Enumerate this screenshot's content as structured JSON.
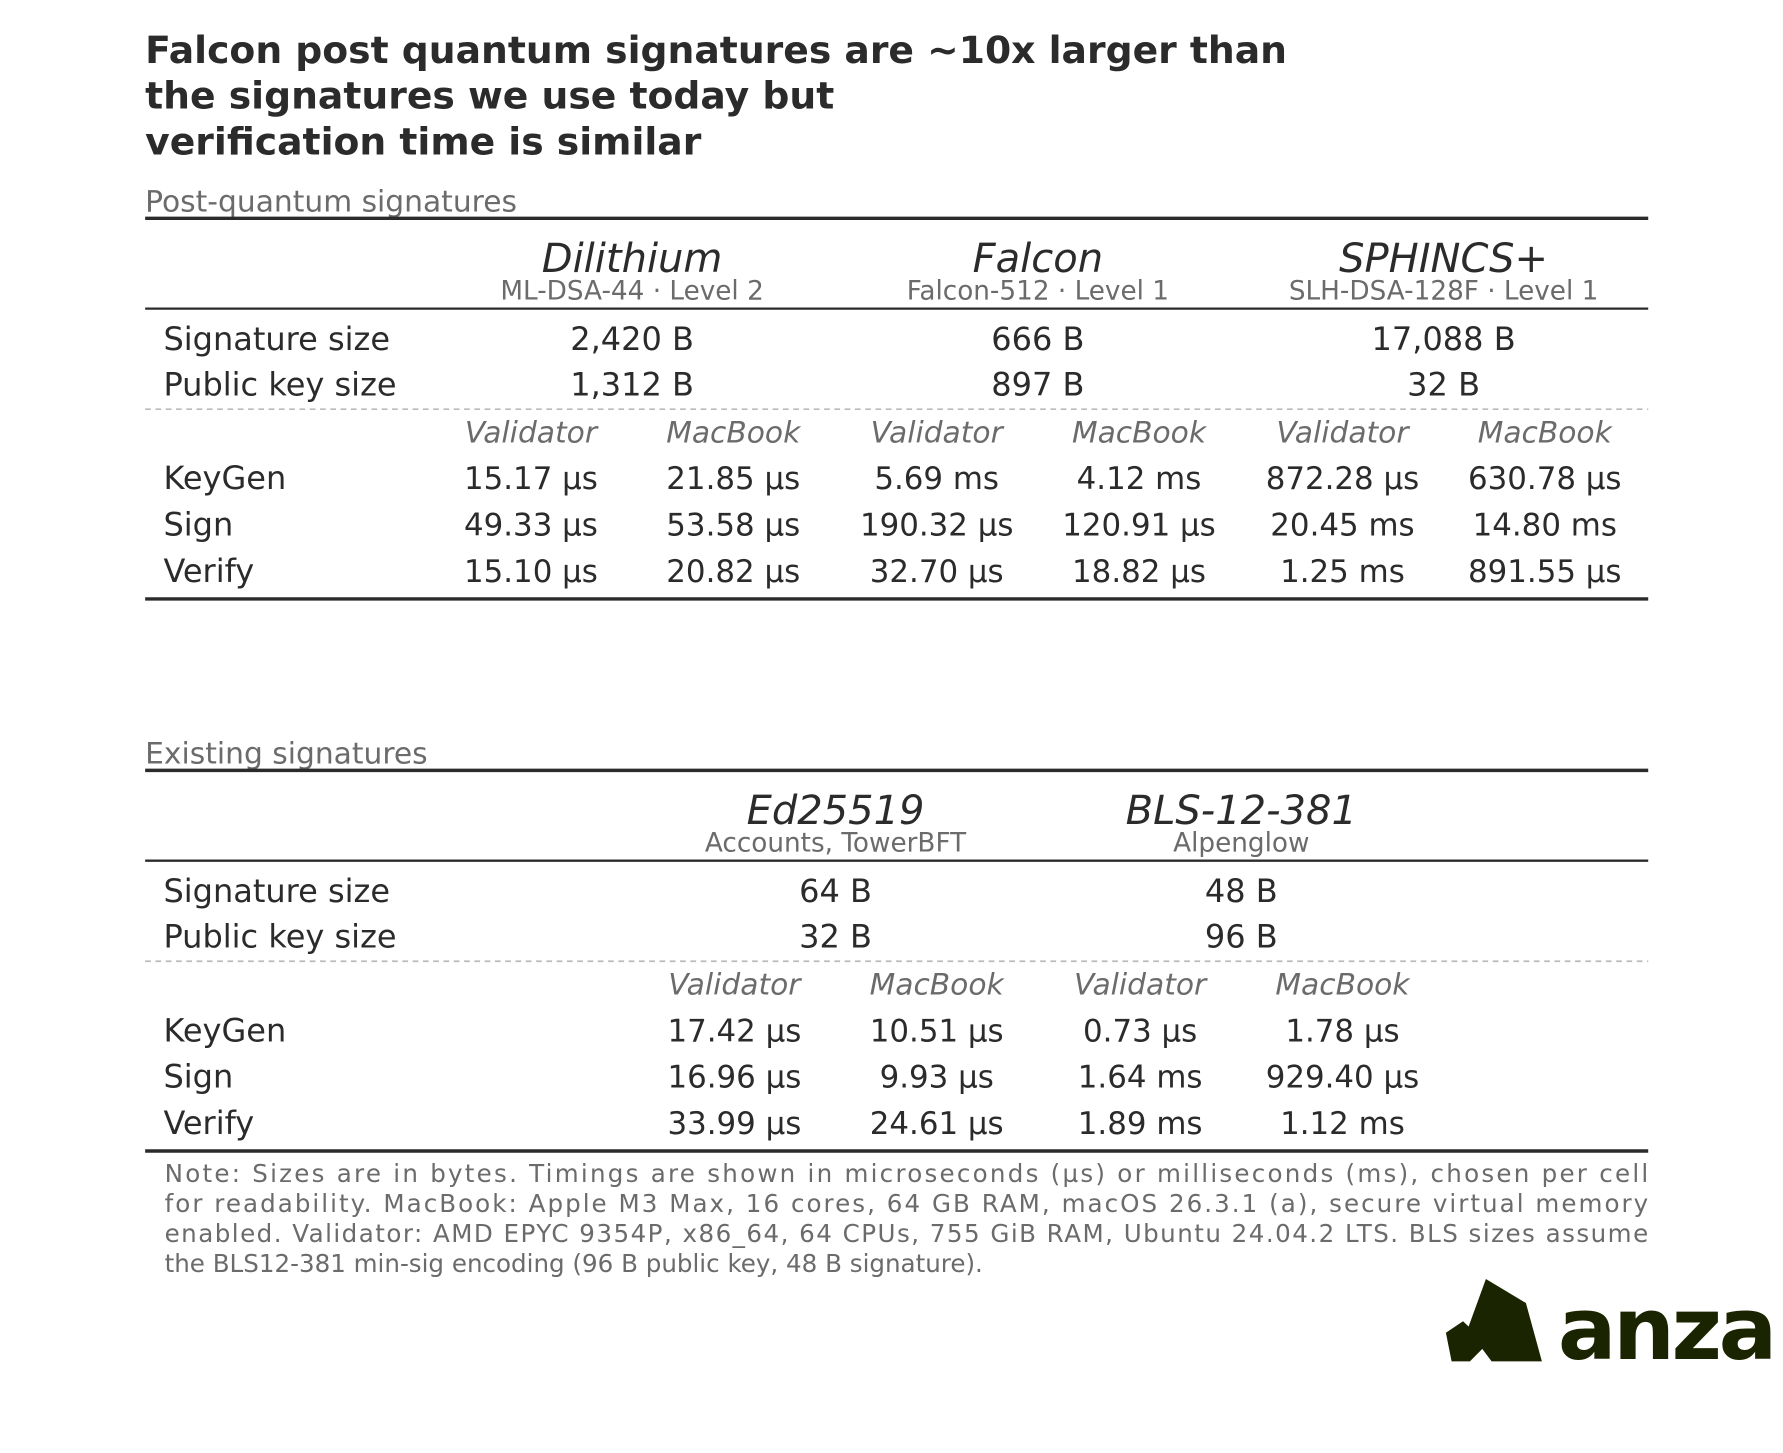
{
  "title_lines": [
    "Falcon post quantum signatures are ~10x larger than",
    "the signatures we use today but",
    "verification time is similar"
  ],
  "sections": [
    {
      "label": "Post-quantum signatures",
      "schemes": [
        {
          "name": "Dilithium",
          "detail": "ML-DSA-44 · Level 2"
        },
        {
          "name": "Falcon",
          "detail": "Falcon-512 · Level 1"
        },
        {
          "name": "SPHINCS+",
          "detail": "SLH-DSA-128F · Level 1"
        }
      ],
      "size_rows": [
        {
          "label": "Signature size",
          "cells": [
            "2,420 B",
            "666 B",
            "17,088 B"
          ]
        },
        {
          "label": "Public key size",
          "cells": [
            "1,312 B",
            "897 B",
            "32 B"
          ]
        }
      ],
      "machines": [
        "Validator",
        "MacBook",
        "Validator",
        "MacBook",
        "Validator",
        "MacBook"
      ],
      "timing_rows": [
        {
          "label": "KeyGen",
          "cells": [
            "15.17 µs",
            "21.85 µs",
            "5.69 ms",
            "4.12 ms",
            "872.28 µs",
            "630.78 µs"
          ]
        },
        {
          "label": "Sign",
          "cells": [
            "49.33 µs",
            "53.58 µs",
            "190.32 µs",
            "120.91 µs",
            "20.45 ms",
            "14.80 ms"
          ]
        },
        {
          "label": "Verify",
          "cells": [
            "15.10 µs",
            "20.82 µs",
            "32.70 µs",
            "18.82 µs",
            "1.25 ms",
            "891.55 µs"
          ]
        }
      ]
    },
    {
      "label": "Existing signatures",
      "schemes": [
        {
          "name": "Ed25519",
          "detail": "Accounts, TowerBFT"
        },
        {
          "name": "BLS-12-381",
          "detail": "Alpenglow"
        }
      ],
      "size_rows": [
        {
          "label": "Signature size",
          "cells": [
            "64 B",
            "48 B"
          ]
        },
        {
          "label": "Public key size",
          "cells": [
            "32 B",
            "96 B"
          ]
        }
      ],
      "machines": [
        "Validator",
        "MacBook",
        "Validator",
        "MacBook"
      ],
      "timing_rows": [
        {
          "label": "KeyGen",
          "cells": [
            "17.42 µs",
            "10.51 µs",
            "0.73 µs",
            "1.78 µs"
          ]
        },
        {
          "label": "Sign",
          "cells": [
            "16.96 µs",
            "9.93 µs",
            "1.64 ms",
            "929.40 µs"
          ]
        },
        {
          "label": "Verify",
          "cells": [
            "33.99 µs",
            "24.61 µs",
            "1.89 ms",
            "1.12 ms"
          ]
        }
      ]
    }
  ],
  "note_lines": [
    "Note: Sizes are in bytes. Timings are shown in microseconds (µs) or milliseconds (ms), chosen per cell",
    "for readability. MacBook: Apple M3 Max, 16 cores, 64 GB RAM, macOS 26.3.1 (a), secure virtual memory",
    "enabled. Validator: AMD EPYC 9354P, x86_64, 64 CPUs, 755 GiB RAM, Ubuntu 24.04.2 LTS. BLS sizes assume",
    "the BLS12-381 min-sig encoding (96 B public key, 48 B signature)."
  ],
  "logo": "anza"
}
